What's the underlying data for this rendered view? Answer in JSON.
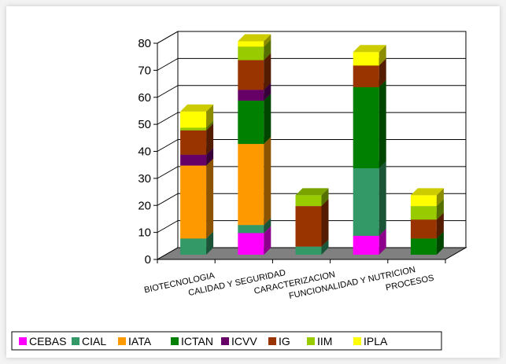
{
  "chart_data": {
    "type": "bar",
    "stacked": true,
    "three_d": true,
    "categories": [
      "BIOTECNOLOGIA",
      "CALIDAD Y SEGURIDAD",
      "CARACTERIZACION",
      "FUNCIONALIDAD Y NUTRICION",
      "PROCESOS"
    ],
    "ylim": [
      0,
      80
    ],
    "yticks": [
      0,
      10,
      20,
      30,
      40,
      50,
      60,
      70,
      80
    ],
    "grid": true,
    "legend_position": "bottom",
    "series": [
      {
        "name": "CEBAS",
        "color": "#ff00ff",
        "values": [
          0,
          8,
          0,
          7,
          0
        ]
      },
      {
        "name": "CIAL",
        "color": "#339966",
        "values": [
          6,
          3,
          3,
          25,
          0
        ]
      },
      {
        "name": "IATA",
        "color": "#ff9900",
        "values": [
          27,
          30,
          0,
          0,
          0
        ]
      },
      {
        "name": "ICTAN",
        "color": "#008000",
        "values": [
          0,
          16,
          0,
          30,
          6
        ]
      },
      {
        "name": "ICVV",
        "color": "#660066",
        "values": [
          4,
          4,
          0,
          0,
          0
        ]
      },
      {
        "name": "IG",
        "color": "#993300",
        "values": [
          9,
          11,
          15,
          8,
          7
        ]
      },
      {
        "name": "IIM",
        "color": "#99cc00",
        "values": [
          1,
          5,
          4,
          0,
          5
        ]
      },
      {
        "name": "IPLA",
        "color": "#ffff00",
        "values": [
          6,
          2,
          0,
          5,
          4
        ]
      }
    ]
  }
}
